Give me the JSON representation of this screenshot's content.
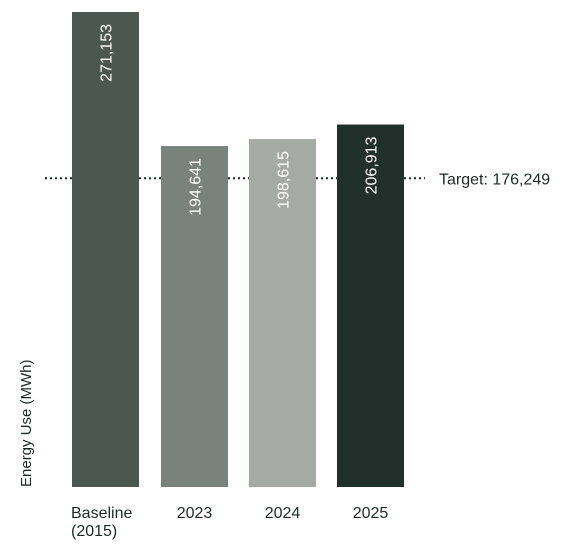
{
  "chart_data": {
    "type": "bar",
    "ylabel": "Energy Use (MWh)",
    "ylim": [
      0,
      271153
    ],
    "categories": [
      [
        "Baseline",
        "(2015)"
      ],
      [
        "2023"
      ],
      [
        "2024"
      ],
      [
        "2025"
      ]
    ],
    "values": [
      271153,
      194641,
      198615,
      206913
    ],
    "value_labels": [
      "271,153",
      "194,641",
      "198,615",
      "206,913"
    ],
    "bar_colors": [
      "#4d5752",
      "#7a827e",
      "#a6aaa7",
      "#22302b"
    ],
    "target": {
      "value": 176249,
      "label": "Target: 176,249",
      "style": "dotted",
      "color": "#1f2a26"
    }
  }
}
